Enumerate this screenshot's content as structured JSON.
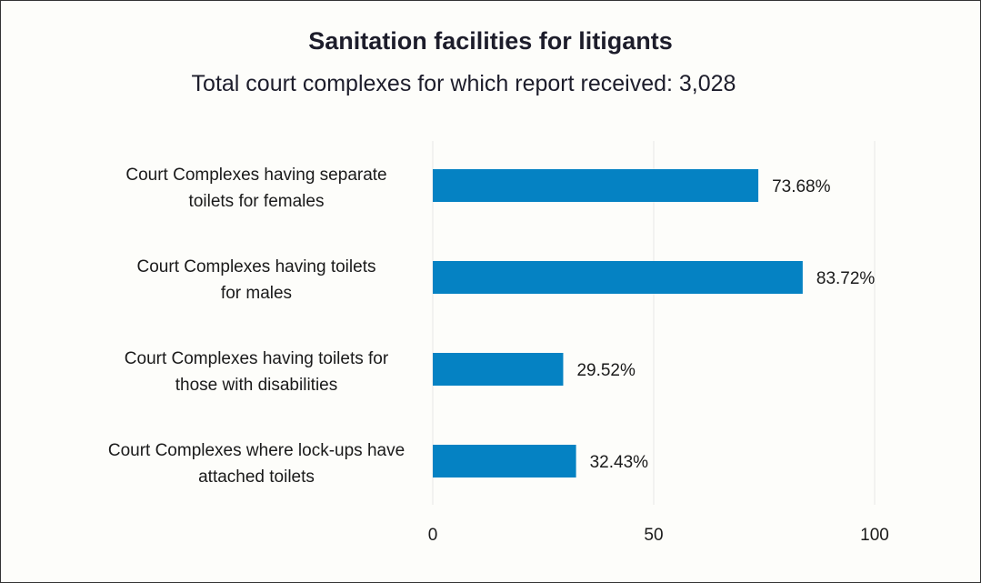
{
  "chart_data": {
    "type": "bar",
    "orientation": "horizontal",
    "title": "Sanitation facilities for litigants",
    "subtitle": "Total court complexes for which report received: 3,028",
    "categories": [
      [
        "Court Complexes having separate",
        "toilets for females"
      ],
      [
        "Court Complexes having toilets",
        "for males"
      ],
      [
        "Court Complexes having toilets for",
        "those with disabilities"
      ],
      [
        "Court Complexes where lock-ups have",
        "attached toilets"
      ]
    ],
    "values": [
      73.68,
      83.72,
      29.52,
      32.43
    ],
    "data_labels": [
      "73.68%",
      "83.72%",
      "29.52%",
      "32.43%"
    ],
    "xlim": [
      0,
      100
    ],
    "xticks": [
      "0",
      "50",
      "100"
    ],
    "grid": true,
    "legend": "none",
    "bar_color": "#0582c3",
    "grid_color": "#e6e6e6"
  }
}
